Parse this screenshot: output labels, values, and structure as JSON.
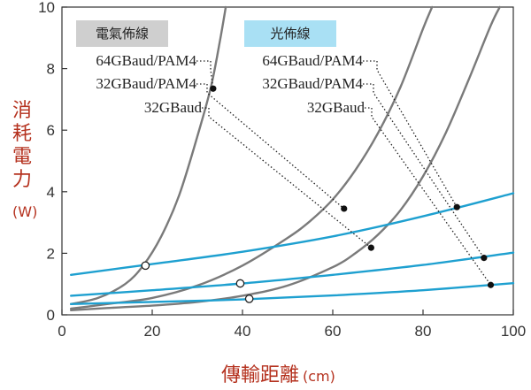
{
  "chart_data": {
    "type": "line",
    "xlabel": "傳輸距離",
    "xlabel_unit": "(cm)",
    "ylabel": "消耗電力",
    "ylabel_unit": "(W)",
    "xlim": [
      0,
      100
    ],
    "ylim": [
      0,
      10
    ],
    "xticks": [
      0,
      20,
      40,
      60,
      80,
      100
    ],
    "yticks": [
      0,
      2,
      4,
      6,
      8,
      10
    ],
    "groups": [
      {
        "name": "電氣佈線",
        "color": "#7a7a7a"
      },
      {
        "name": "光佈線",
        "color": "#1ea0d0"
      }
    ],
    "series": [
      {
        "name": "32GBaud",
        "group": "電氣佈線",
        "color": "#7a7a7a",
        "x": [
          2,
          10,
          20,
          30,
          40,
          50,
          60,
          65,
          70,
          75,
          80,
          85,
          90,
          95,
          97
        ],
        "y": [
          0.15,
          0.22,
          0.3,
          0.42,
          0.62,
          0.95,
          1.55,
          2.0,
          2.6,
          3.4,
          4.5,
          5.9,
          7.6,
          9.4,
          10.0
        ]
      },
      {
        "name": "32GBaud/PAM4",
        "group": "電氣佈線",
        "color": "#7a7a7a",
        "x": [
          2,
          10,
          20,
          30,
          40,
          50,
          55,
          60,
          65,
          70,
          75,
          80,
          82
        ],
        "y": [
          0.2,
          0.35,
          0.55,
          0.95,
          1.6,
          2.5,
          3.05,
          3.75,
          4.7,
          5.9,
          7.4,
          9.3,
          10.0
        ]
      },
      {
        "name": "64GBaud/PAM4",
        "group": "電氣佈線",
        "color": "#7a7a7a",
        "x": [
          2,
          8,
          14,
          18,
          22,
          26,
          30,
          33,
          35,
          36.3
        ],
        "y": [
          0.35,
          0.55,
          1.0,
          1.6,
          2.55,
          3.9,
          5.8,
          7.4,
          8.9,
          10.0
        ]
      },
      {
        "name": "32GBaud",
        "group": "光佈線",
        "color": "#1ea0d0",
        "x": [
          2,
          20,
          40,
          60,
          80,
          100
        ],
        "y": [
          0.35,
          0.42,
          0.5,
          0.63,
          0.8,
          1.03
        ]
      },
      {
        "name": "32GBaud/PAM4",
        "group": "光佈線",
        "color": "#1ea0d0",
        "x": [
          2,
          20,
          40,
          60,
          80,
          100
        ],
        "y": [
          0.62,
          0.8,
          1.02,
          1.3,
          1.62,
          2.02
        ]
      },
      {
        "name": "64GBaud/PAM4",
        "group": "光佈線",
        "color": "#1ea0d0",
        "x": [
          2,
          20,
          40,
          60,
          80,
          100
        ],
        "y": [
          1.3,
          1.65,
          2.05,
          2.55,
          3.2,
          3.95
        ]
      }
    ],
    "crossovers": [
      {
        "x": 18.5,
        "y": 1.6
      },
      {
        "x": 39.5,
        "y": 1.02
      },
      {
        "x": 41.5,
        "y": 0.52
      }
    ],
    "callouts": [
      {
        "label": "64GBaud/PAM4",
        "group": "電氣佈線",
        "x": 33.5,
        "y": 7.35
      },
      {
        "label": "32GBaud/PAM4",
        "group": "電氣佈線",
        "x": 62.5,
        "y": 3.45
      },
      {
        "label": "32GBaud",
        "group": "電氣佈線",
        "x": 68.5,
        "y": 2.18
      },
      {
        "label": "64GBaud/PAM4",
        "group": "光佈線",
        "x": 87.5,
        "y": 3.5
      },
      {
        "label": "32GBaud/PAM4",
        "group": "光佈線",
        "x": 93.5,
        "y": 1.85
      },
      {
        "label": "32GBaud",
        "group": "光佈線",
        "x": 95,
        "y": 0.97
      }
    ]
  }
}
